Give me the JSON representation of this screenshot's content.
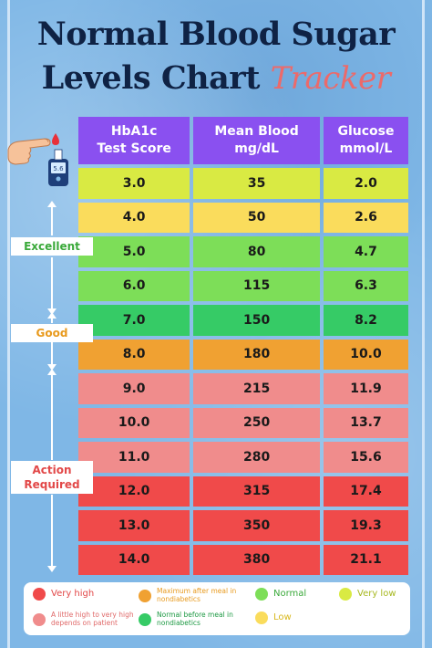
{
  "title": {
    "line1": "Normal Blood Sugar",
    "line2": "Levels Chart",
    "accent": "Tracker"
  },
  "icon": {
    "name": "glucose-meter-finger-icon",
    "reading": "5.6"
  },
  "table": {
    "headers": [
      {
        "line1": "HbA1c",
        "line2": "Test Score"
      },
      {
        "line1": "Mean Blood",
        "line2": "mg/dL"
      },
      {
        "line1": "Glucose",
        "line2": "mmol/L"
      }
    ],
    "rows": [
      {
        "hba1c": "3.0",
        "mgdl": "35",
        "mmol": "2.0",
        "color": "#d9ea43"
      },
      {
        "hba1c": "4.0",
        "mgdl": "50",
        "mmol": "2.6",
        "color": "#fadc5c"
      },
      {
        "hba1c": "5.0",
        "mgdl": "80",
        "mmol": "4.7",
        "color": "#7dde58"
      },
      {
        "hba1c": "6.0",
        "mgdl": "115",
        "mmol": "6.3",
        "color": "#7dde58"
      },
      {
        "hba1c": "7.0",
        "mgdl": "150",
        "mmol": "8.2",
        "color": "#36cb66"
      },
      {
        "hba1c": "8.0",
        "mgdl": "180",
        "mmol": "10.0",
        "color": "#f0a132"
      },
      {
        "hba1c": "9.0",
        "mgdl": "215",
        "mmol": "11.9",
        "color": "#f08c8c"
      },
      {
        "hba1c": "10.0",
        "mgdl": "250",
        "mmol": "13.7",
        "color": "#f08c8c"
      },
      {
        "hba1c": "11.0",
        "mgdl": "280",
        "mmol": "15.6",
        "color": "#f08c8c"
      },
      {
        "hba1c": "12.0",
        "mgdl": "315",
        "mmol": "17.4",
        "color": "#f04a4a"
      },
      {
        "hba1c": "13.0",
        "mgdl": "350",
        "mmol": "19.3",
        "color": "#f04a4a"
      },
      {
        "hba1c": "14.0",
        "mgdl": "380",
        "mmol": "21.1",
        "color": "#f04a4a"
      }
    ]
  },
  "ranges": {
    "excellent": {
      "label": "Excellent",
      "color": "#3aa93a"
    },
    "good": {
      "label": "Good",
      "color": "#e89a1e"
    },
    "action": {
      "line1": "Action",
      "line2": "Required",
      "color": "#e24848"
    }
  },
  "legend": [
    {
      "text": "Very high",
      "color": "#f04a4a",
      "text_color": "#e24848"
    },
    {
      "text": "Maximum after meal in nondiabetics",
      "color": "#f0a132",
      "text_color": "#e89a1e"
    },
    {
      "text": "Normal",
      "color": "#7dde58",
      "text_color": "#3aa93a"
    },
    {
      "text": "Very low",
      "color": "#d9ea43",
      "text_color": "#a7b820"
    },
    {
      "text": "A little high to very high depends on patient",
      "color": "#f08c8c",
      "text_color": "#e06a6a"
    },
    {
      "text": "Normal before meal in nondiabetics",
      "color": "#36cb66",
      "text_color": "#1f9a45"
    },
    {
      "text": "Low",
      "color": "#fadc5c",
      "text_color": "#d8b81d"
    }
  ]
}
